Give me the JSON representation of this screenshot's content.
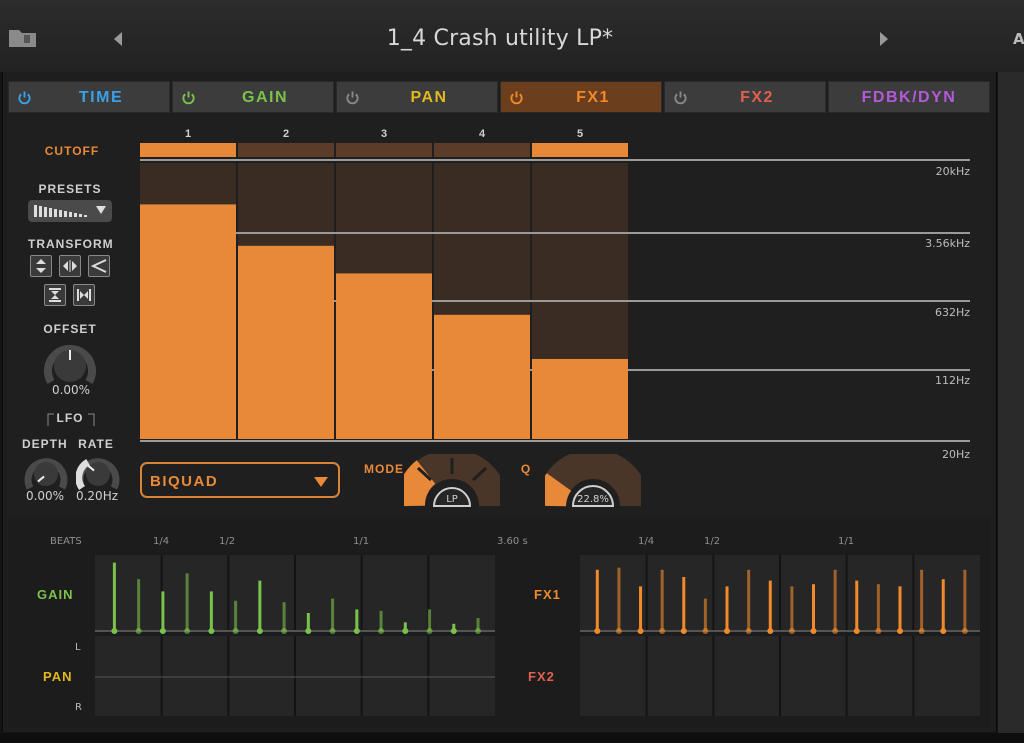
{
  "header": {
    "title": "1_4 Crash utility LP*",
    "edge_letter": "A"
  },
  "tabs": [
    {
      "label": "TIME",
      "color": "#3aa0e8",
      "active": false
    },
    {
      "label": "GAIN",
      "color": "#7bc24a",
      "active": false
    },
    {
      "label": "PAN",
      "color": "#e0b820",
      "active": false
    },
    {
      "label": "FX1",
      "color": "#f08a2a",
      "active": true
    },
    {
      "label": "FX2",
      "color": "#e06050",
      "active": false
    },
    {
      "label": "FDBK/DYN",
      "color": "#b45ad8",
      "active": false
    }
  ],
  "editor": {
    "cutoff_label": "CUTOFF",
    "presets_label": "PRESETS",
    "transform_label": "TRANSFORM",
    "offset_label": "OFFSET",
    "offset_value": "0.00%",
    "lfo_label": "LFO",
    "depth_label": "DEPTH",
    "depth_value": "0.00%",
    "rate_label": "RATE",
    "rate_value": "0.20Hz",
    "steps": [
      "1",
      "2",
      "3",
      "4",
      "5"
    ],
    "step_levels": [
      0.85,
      0.7,
      0.6,
      0.45,
      0.29
    ],
    "freq_labels": [
      "20kHz",
      "3.56kHz",
      "632Hz",
      "112Hz",
      "20Hz"
    ],
    "filter_type": "BIQUAD",
    "mode_label": "MODE",
    "mode_value": "LP",
    "q_label": "Q",
    "q_value": "22.8%"
  },
  "sequencer": {
    "beats_label": "BEATS",
    "left_ticks": [
      "1/4",
      "1/2",
      "1/1"
    ],
    "duration": "3.60 s",
    "right_ticks": [
      "1/4",
      "1/2",
      "1/1"
    ],
    "gain_label": "GAIN",
    "pan_label": "PAN",
    "pan_l": "L",
    "pan_r": "R",
    "fx1_label": "FX1",
    "fx2_label": "FX2",
    "gain_color": "#7bc24a",
    "pan_color": "#e0b820",
    "fx1_color": "#f08a2a",
    "fx2_color": "#e06050",
    "gain_events": [
      0.95,
      0.72,
      0.55,
      0.8,
      0.55,
      0.42,
      0.7,
      0.4,
      0.25,
      0.45,
      0.3,
      0.28,
      0.12,
      0.3,
      0.1,
      0.18
    ],
    "fx1_events": [
      0.85,
      0.88,
      0.62,
      0.85,
      0.75,
      0.45,
      0.62,
      0.85,
      0.7,
      0.62,
      0.65,
      0.85,
      0.7,
      0.65,
      0.62,
      0.85,
      0.72,
      0.85
    ]
  },
  "colors": {
    "accent": "#e8893a",
    "bar": "#e8893a",
    "bar_bg": "#3a2c22"
  }
}
